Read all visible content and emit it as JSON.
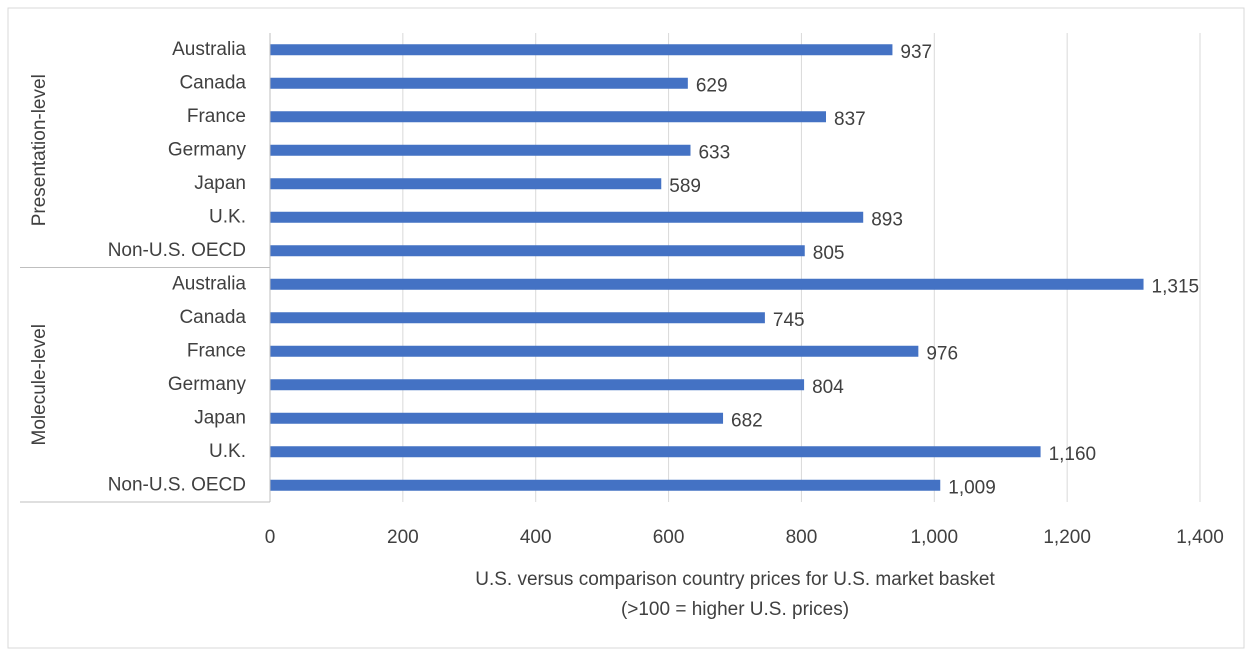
{
  "chart_data": {
    "type": "bar",
    "orientation": "horizontal",
    "color": "#4472c4",
    "groups": [
      {
        "name": "Presentation-level",
        "categories": [
          "Australia",
          "Canada",
          "France",
          "Germany",
          "Japan",
          "U.K.",
          "Non-U.S. OECD"
        ],
        "values": [
          937,
          629,
          837,
          633,
          589,
          893,
          805
        ],
        "value_labels": [
          "937",
          "629",
          "837",
          "633",
          "589",
          "893",
          "805"
        ]
      },
      {
        "name": "Molecule-level",
        "categories": [
          "Australia",
          "Canada",
          "France",
          "Germany",
          "Japan",
          "U.K.",
          "Non-U.S. OECD"
        ],
        "values": [
          1315,
          745,
          976,
          804,
          682,
          1160,
          1009
        ],
        "value_labels": [
          "1,315",
          "745",
          "976",
          "804",
          "682",
          "1,160",
          "1,009"
        ]
      }
    ],
    "xlim": [
      0,
      1400
    ],
    "xticks": [
      0,
      200,
      400,
      600,
      800,
      {
        "value": 1000,
        "label": "1,000"
      },
      {
        "value": 1200,
        "label": "1,200"
      },
      {
        "value": 1400,
        "label": "1,400"
      }
    ],
    "xlabel": [
      "U.S. versus comparison country prices for U.S. market basket",
      "(>100 = higher U.S. prices)"
    ],
    "grid": true
  }
}
